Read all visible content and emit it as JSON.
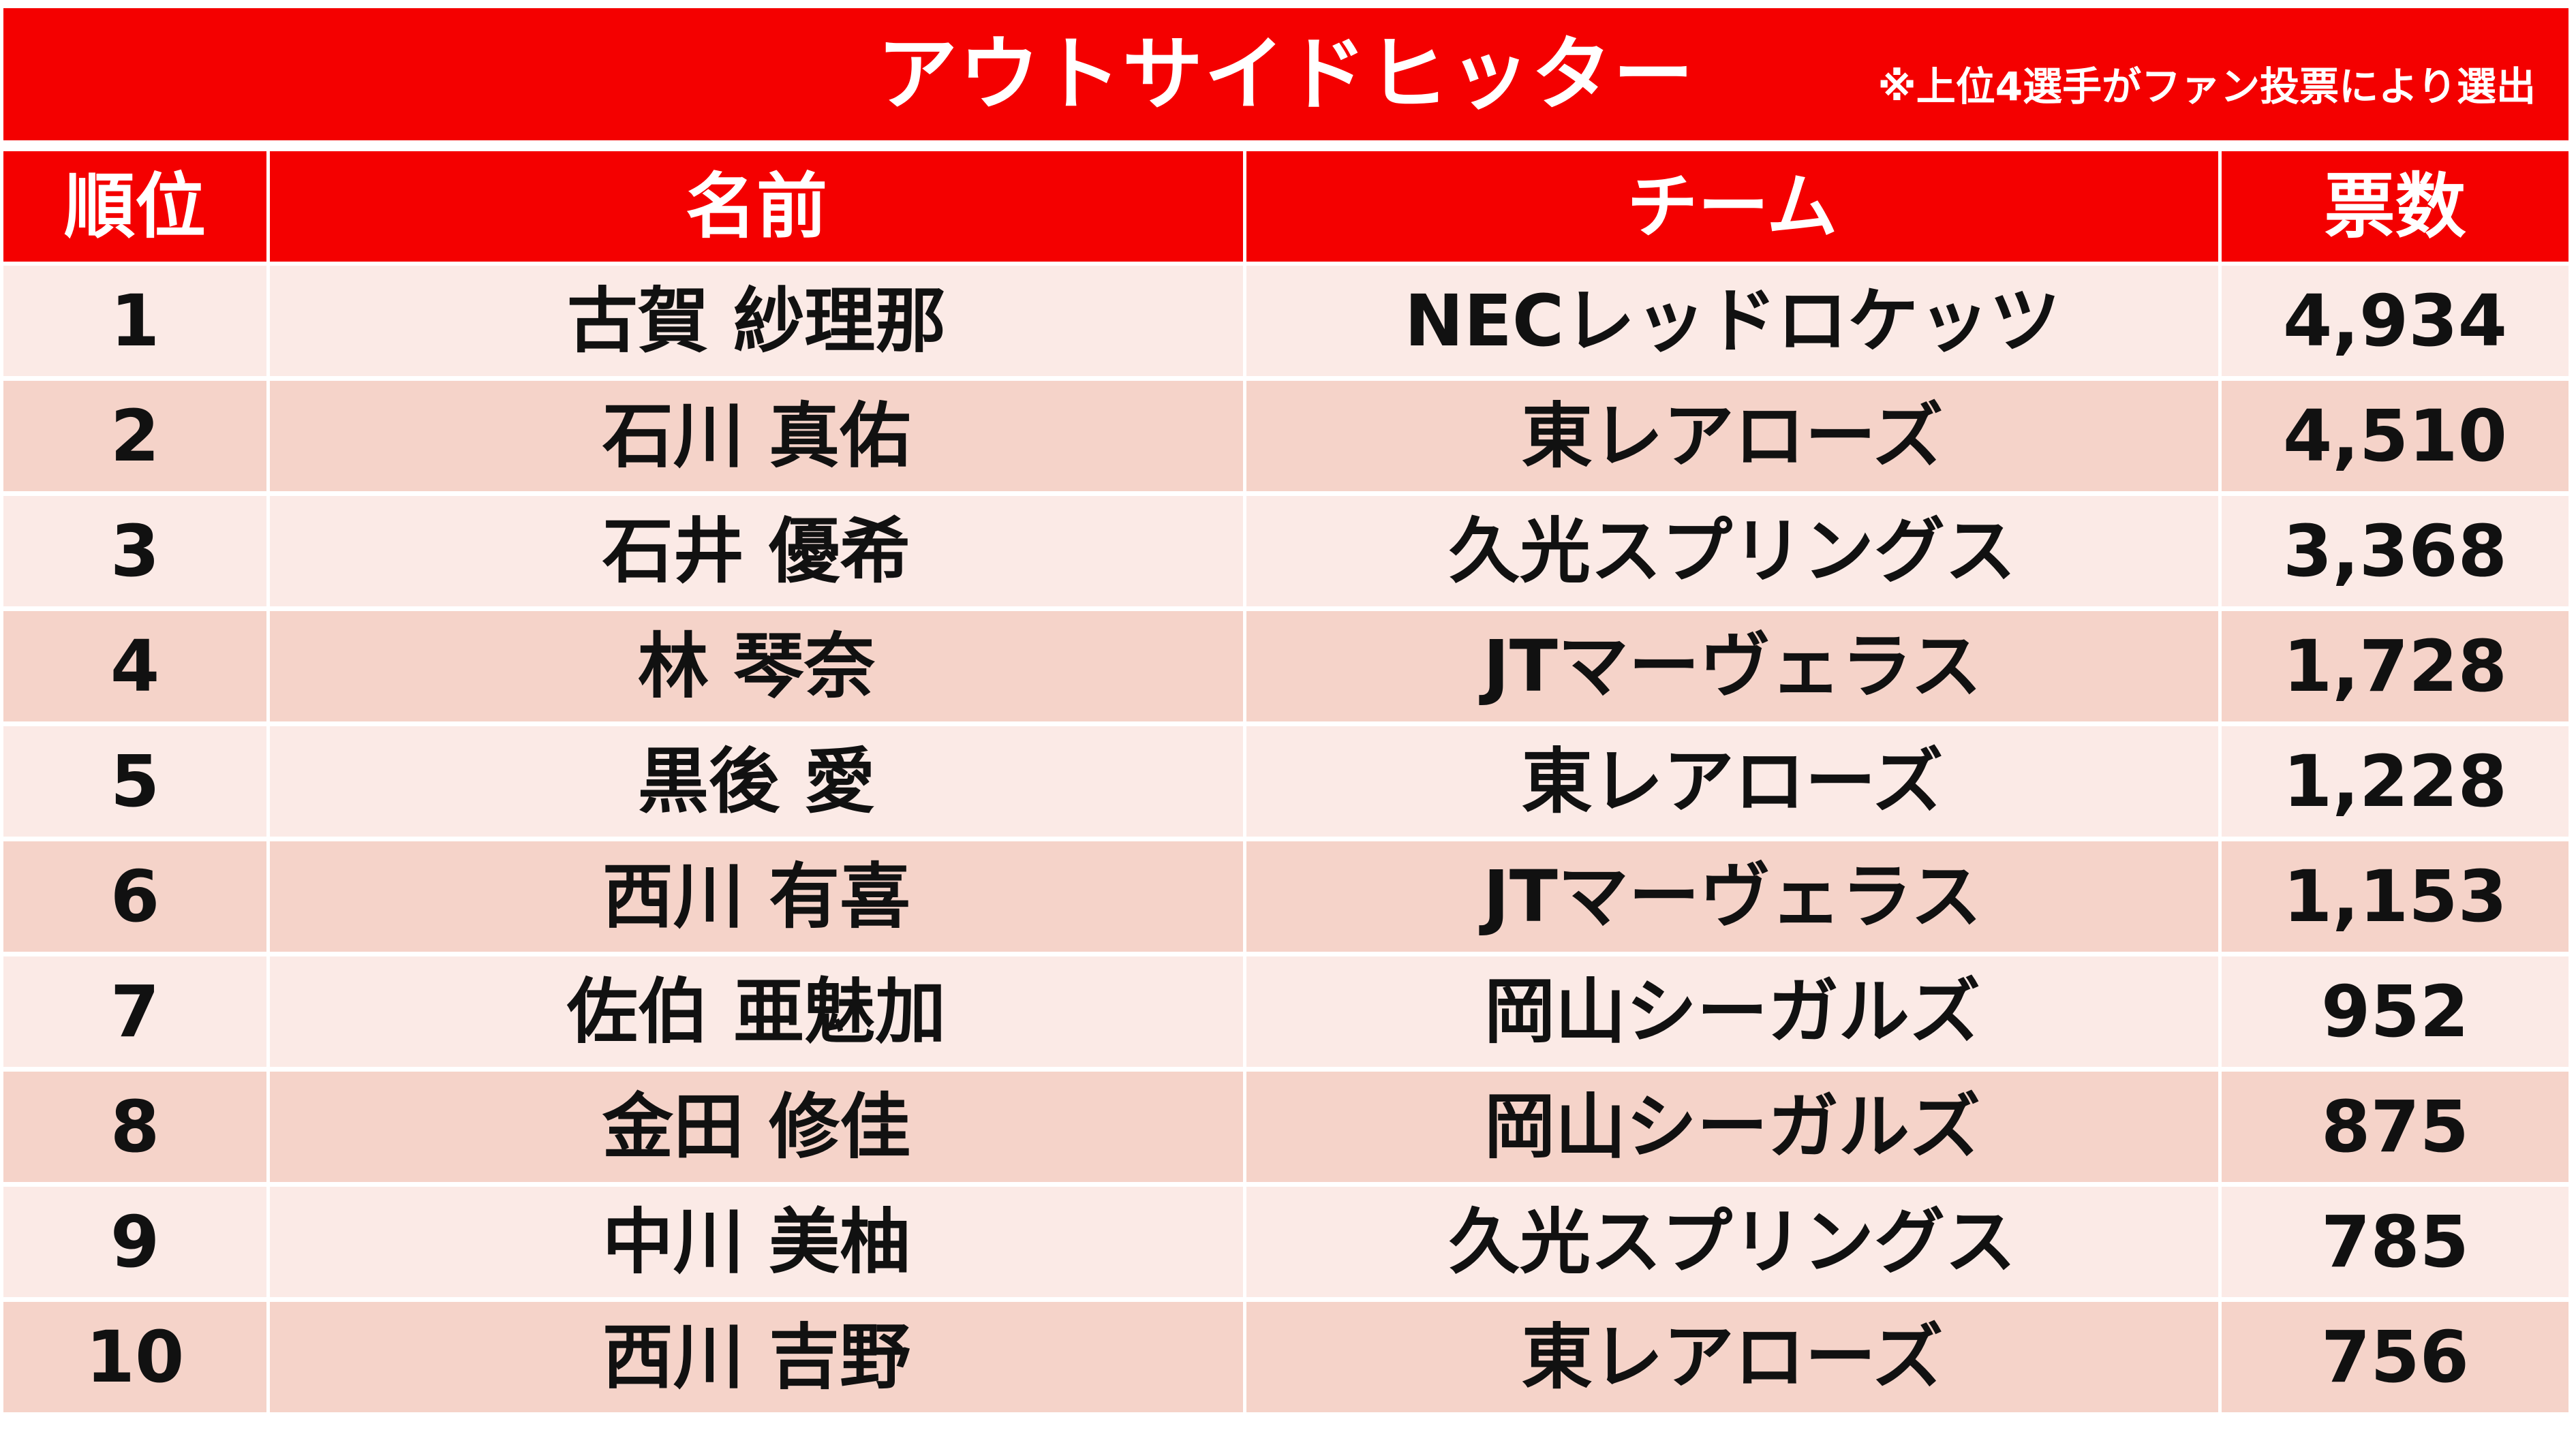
{
  "title": "アウトサイドヒッター",
  "note": "※上位4選手がファン投票により選出",
  "colors": {
    "header_red": "#f40000",
    "row_light": "#fbeae6",
    "row_dark": "#f5d3c9"
  },
  "table": {
    "headers": {
      "rank": "順位",
      "name": "名前",
      "team": "チーム",
      "votes": "票数"
    },
    "rows": [
      {
        "rank": "1",
        "name": "古賀 紗理那",
        "team": "NECレッドロケッツ",
        "votes": "4,934"
      },
      {
        "rank": "2",
        "name": "石川 真佑",
        "team": "東レアローズ",
        "votes": "4,510"
      },
      {
        "rank": "3",
        "name": "石井 優希",
        "team": "久光スプリングス",
        "votes": "3,368"
      },
      {
        "rank": "4",
        "name": "林 琴奈",
        "team": "JTマーヴェラス",
        "votes": "1,728"
      },
      {
        "rank": "5",
        "name": "黒後 愛",
        "team": "東レアローズ",
        "votes": "1,228"
      },
      {
        "rank": "6",
        "name": "西川 有喜",
        "team": "JTマーヴェラス",
        "votes": "1,153"
      },
      {
        "rank": "7",
        "name": "佐伯 亜魅加",
        "team": "岡山シーガルズ",
        "votes": "952"
      },
      {
        "rank": "8",
        "name": "金田 修佳",
        "team": "岡山シーガルズ",
        "votes": "875"
      },
      {
        "rank": "9",
        "name": "中川 美柚",
        "team": "久光スプリングス",
        "votes": "785"
      },
      {
        "rank": "10",
        "name": "西川 吉野",
        "team": "東レアローズ",
        "votes": "756"
      }
    ]
  }
}
